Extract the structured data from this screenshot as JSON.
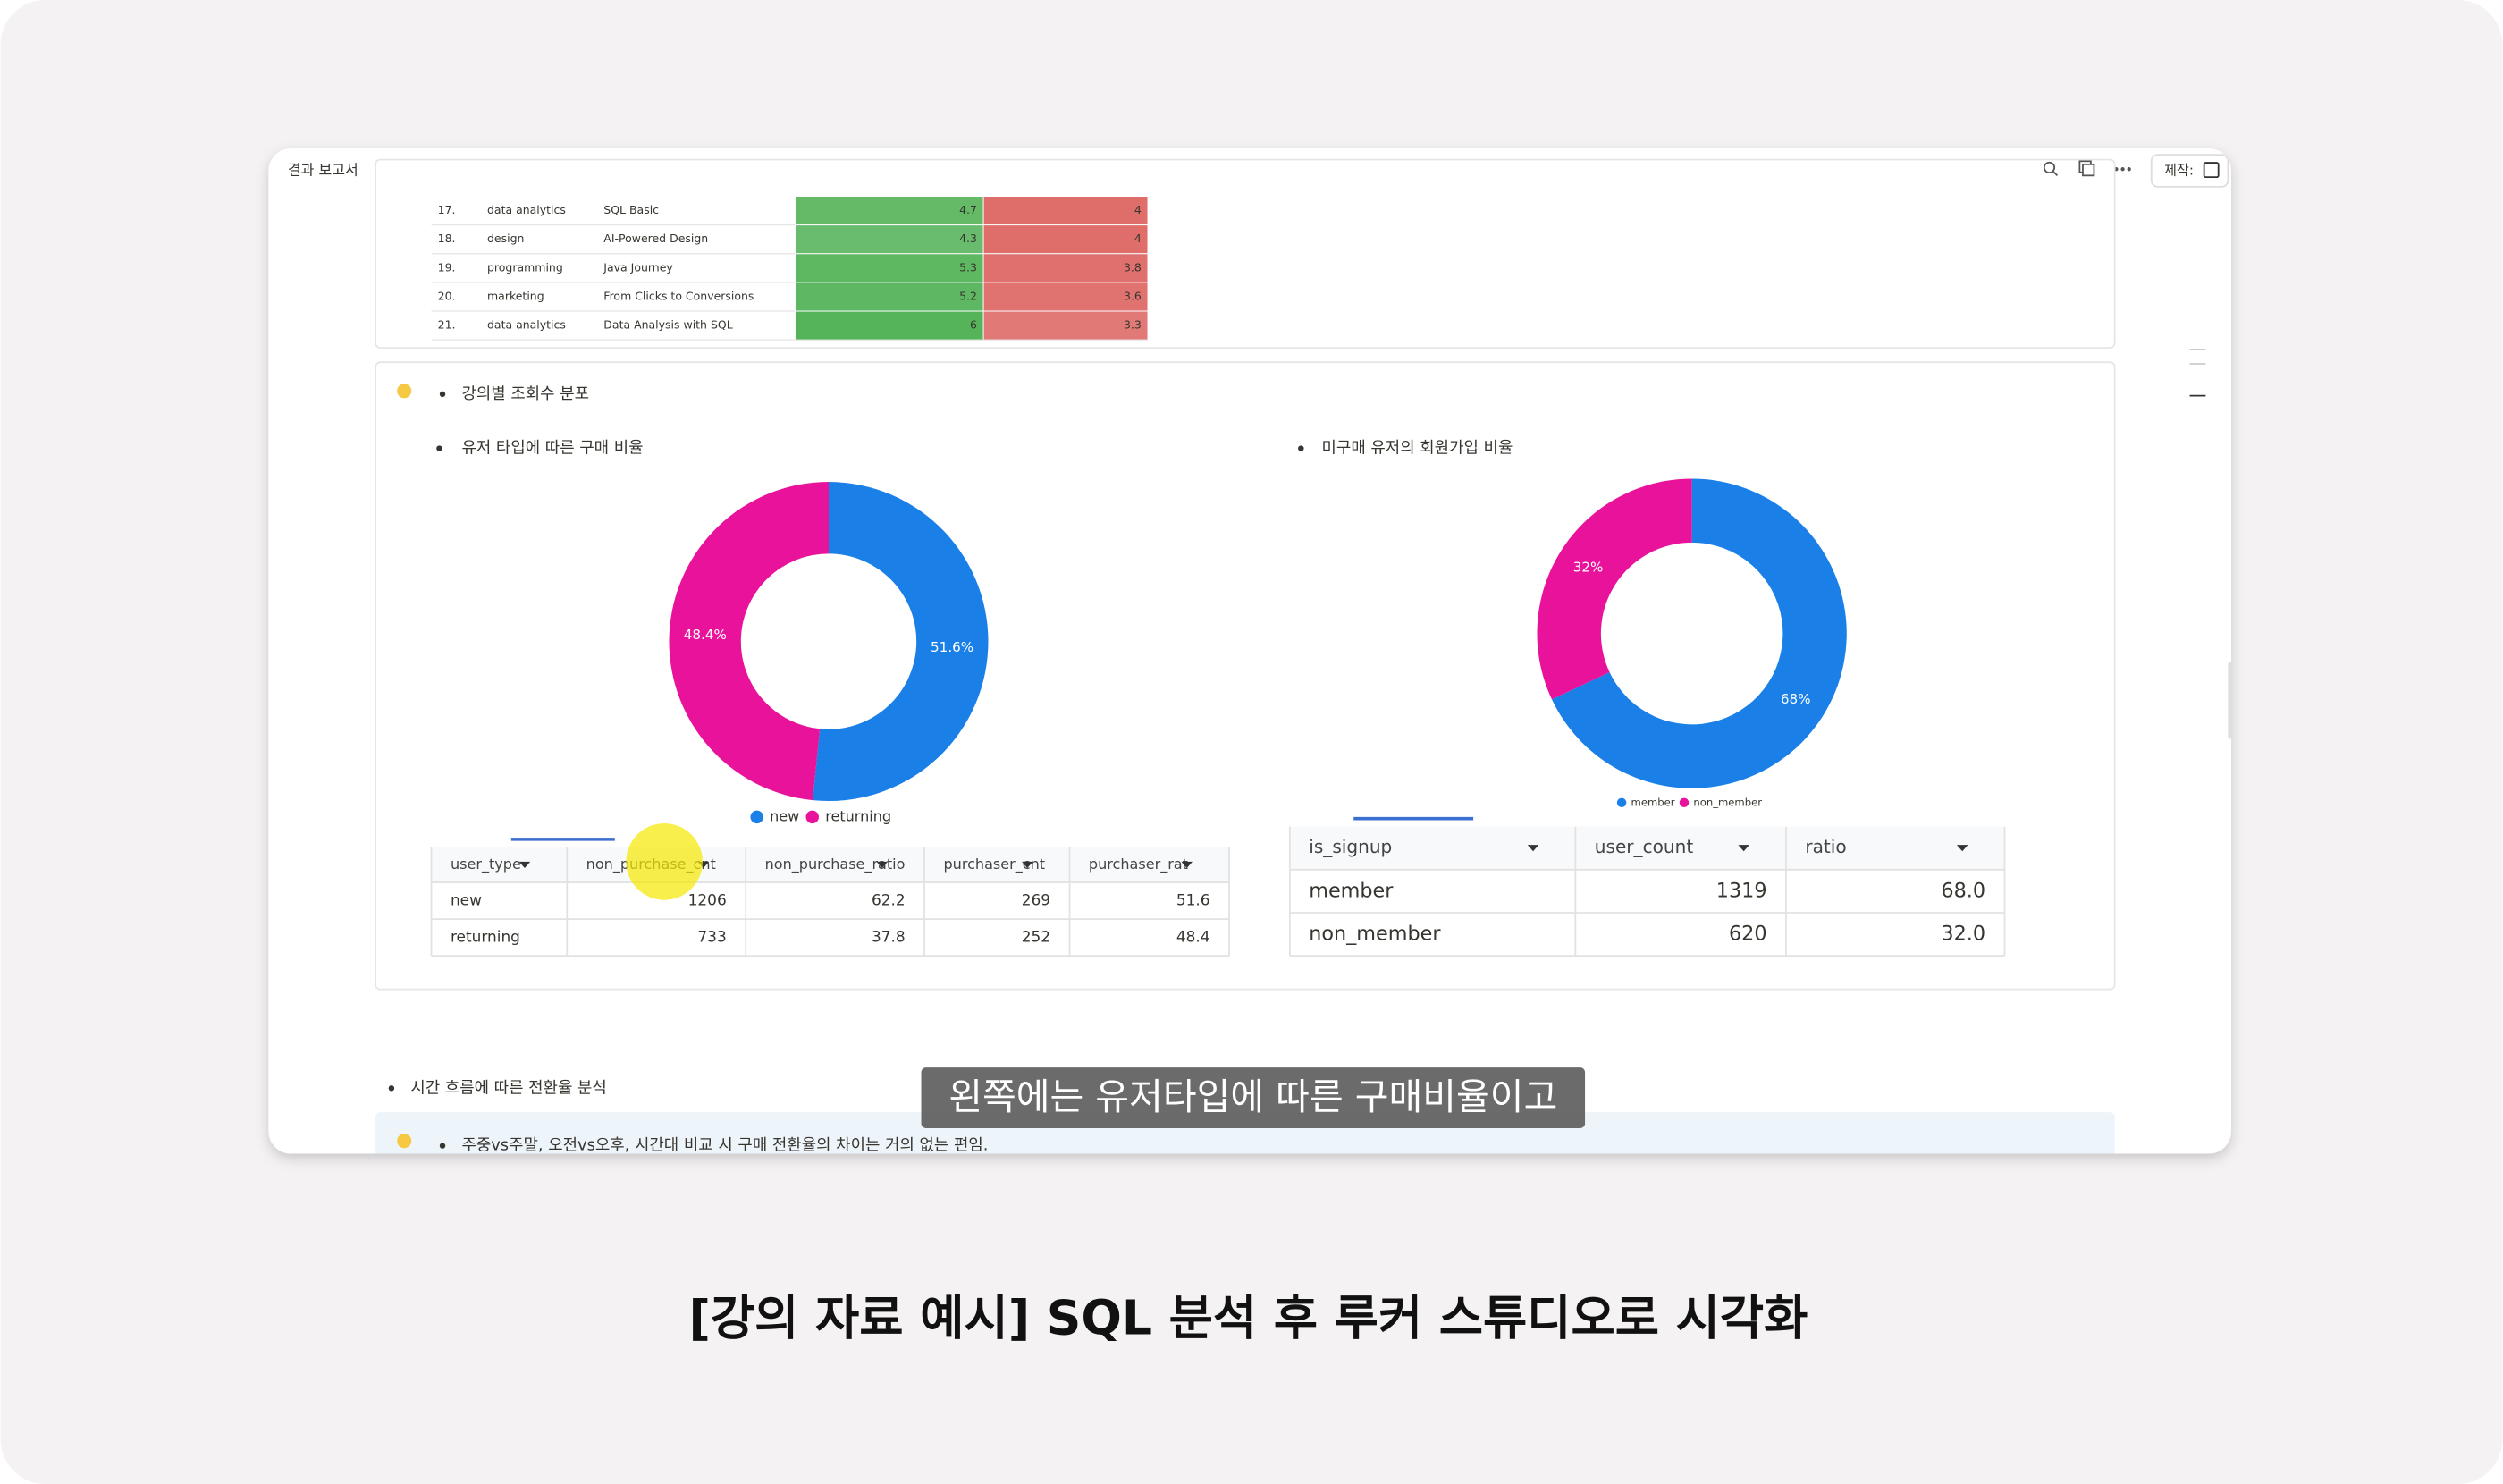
{
  "window": {
    "breadcrumb": "결과 보고서",
    "credit": "제작:"
  },
  "top_table": {
    "rows": [
      [
        "17.",
        "data analytics",
        "SQL Basic",
        4.7,
        4
      ],
      [
        "18.",
        "design",
        "AI-Powered Design",
        4.3,
        4
      ],
      [
        "19.",
        "programming",
        "Java Journey",
        5.3,
        3.8
      ],
      [
        "20.",
        "marketing",
        "From Clicks to Conversions",
        5.2,
        3.6
      ],
      [
        "21.",
        "data analytics",
        "Data Analysis with SQL",
        6,
        3.3
      ]
    ]
  },
  "section_title": "강의별 조회수 분포",
  "charts": [
    {
      "type": "donut",
      "heading": "유저 타입에 따른 구매 비율",
      "categories": [
        "new",
        "returning"
      ],
      "values": [
        51.6,
        48.4
      ],
      "value_labels": [
        "51.6%",
        "48.4%"
      ],
      "colors": [
        "#1a80e8",
        "#e8129b"
      ],
      "table": {
        "columns": [
          "user_type",
          "non_purchase_cnt",
          "non_purchase_ratio",
          "purchaser_cnt",
          "purchaser_rat"
        ],
        "rows": [
          [
            "new",
            1206,
            62.2,
            269,
            51.6
          ],
          [
            "returning",
            733,
            37.8,
            252,
            48.4
          ]
        ]
      }
    },
    {
      "type": "donut",
      "heading": "미구매 유저의 회원가입 비율",
      "categories": [
        "member",
        "non_member"
      ],
      "values": [
        68,
        32
      ],
      "value_labels": [
        "68%",
        "32%"
      ],
      "colors": [
        "#1a80e8",
        "#e8129b"
      ],
      "table": {
        "columns": [
          "is_signup",
          "user_count",
          "ratio"
        ],
        "rows": [
          [
            "member",
            1319,
            "68.0"
          ],
          [
            "non_member",
            620,
            "32.0"
          ]
        ]
      }
    }
  ],
  "bullets": [
    "시간 흐름에 따른 전환율 분석",
    "주중vs주말, 오전vs오후, 시간대 비교 시 구매 전환율의 차이는 거의 없는 편임."
  ],
  "subtitle": "왼쪽에는 유저타입에 따른 구매비율이고",
  "caption": "[강의 자료 예시] SQL 분석 후 루커 스튜디오로 시각화"
}
